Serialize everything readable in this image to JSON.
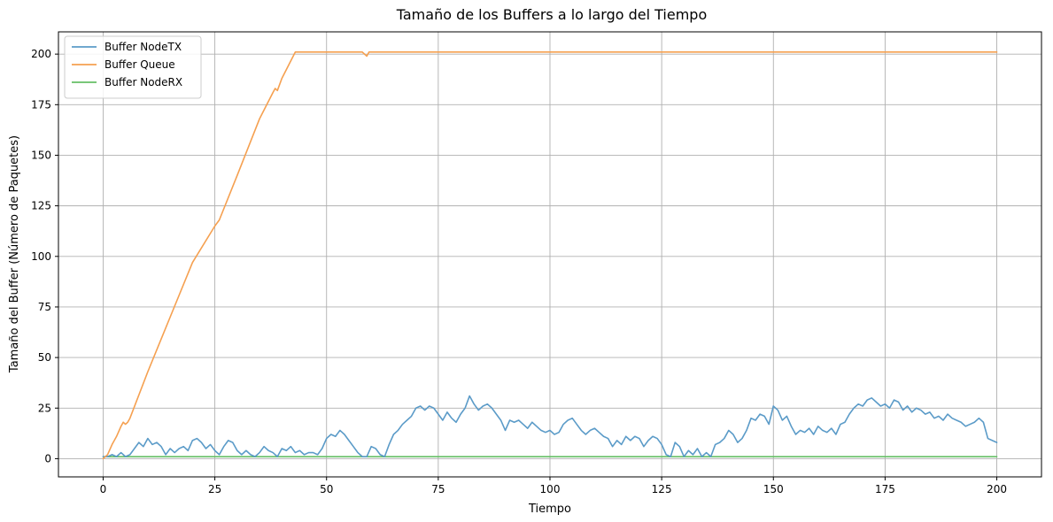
{
  "chart_data": {
    "type": "line",
    "title": "Tamaño de los Buffers a lo largo del Tiempo",
    "xlabel": "Tiempo",
    "ylabel": "Tamaño del Buffer (Número de Paquetes)",
    "xlim": [
      -10,
      210
    ],
    "ylim": [
      -9,
      211
    ],
    "xticks": [
      0,
      25,
      50,
      75,
      100,
      125,
      150,
      175,
      200
    ],
    "yticks": [
      0,
      25,
      50,
      75,
      100,
      125,
      150,
      175,
      200
    ],
    "grid": true,
    "legend_position": "top-left",
    "series": [
      {
        "name": "Buffer NodeTX",
        "color": "#5b9bc8",
        "x": [
          0,
          1,
          2,
          3,
          4,
          5,
          6,
          7,
          8,
          9,
          10,
          11,
          12,
          13,
          14,
          15,
          16,
          17,
          18,
          19,
          20,
          21,
          22,
          23,
          24,
          25,
          26,
          27,
          28,
          29,
          30,
          31,
          32,
          33,
          34,
          35,
          36,
          37,
          38,
          39,
          40,
          41,
          42,
          43,
          44,
          45,
          46,
          47,
          48,
          49,
          50,
          51,
          52,
          53,
          54,
          55,
          56,
          57,
          58,
          59,
          60,
          61,
          62,
          63,
          64,
          65,
          66,
          67,
          68,
          69,
          70,
          71,
          72,
          73,
          74,
          75,
          76,
          77,
          78,
          79,
          80,
          81,
          82,
          83,
          84,
          85,
          86,
          87,
          88,
          89,
          90,
          91,
          92,
          93,
          94,
          95,
          96,
          97,
          98,
          99,
          100,
          101,
          102,
          103,
          104,
          105,
          106,
          107,
          108,
          109,
          110,
          111,
          112,
          113,
          114,
          115,
          116,
          117,
          118,
          119,
          120,
          121,
          122,
          123,
          124,
          125,
          126,
          127,
          128,
          129,
          130,
          131,
          132,
          133,
          134,
          135,
          136,
          137,
          138,
          139,
          140,
          141,
          142,
          143,
          144,
          145,
          146,
          147,
          148,
          149,
          150,
          151,
          152,
          153,
          154,
          155,
          156,
          157,
          158,
          159,
          160,
          161,
          162,
          163,
          164,
          165,
          166,
          167,
          168,
          169,
          170,
          171,
          172,
          173,
          174,
          175,
          176,
          177,
          178,
          179,
          180,
          181,
          182,
          183,
          184,
          185,
          186,
          187,
          188,
          189,
          190,
          191,
          192,
          193,
          194,
          195,
          196,
          197,
          198,
          199,
          200
        ],
        "values": [
          1,
          1,
          2,
          1,
          3,
          1,
          2,
          5,
          8,
          6,
          10,
          7,
          8,
          6,
          2,
          5,
          3,
          5,
          6,
          4,
          9,
          10,
          8,
          5,
          7,
          4,
          2,
          6,
          9,
          8,
          4,
          2,
          4,
          2,
          1,
          3,
          6,
          4,
          3,
          1,
          5,
          4,
          6,
          3,
          4,
          2,
          3,
          3,
          2,
          5,
          10,
          12,
          11,
          14,
          12,
          9,
          6,
          3,
          1,
          1,
          6,
          5,
          2,
          1,
          7,
          12,
          14,
          17,
          19,
          21,
          25,
          26,
          24,
          26,
          25,
          22,
          19,
          23,
          20,
          18,
          22,
          25,
          31,
          27,
          24,
          26,
          27,
          25,
          22,
          19,
          14,
          19,
          18,
          19,
          17,
          15,
          18,
          16,
          14,
          13,
          14,
          12,
          13,
          17,
          19,
          20,
          17,
          14,
          12,
          14,
          15,
          13,
          11,
          10,
          6,
          9,
          7,
          11,
          9,
          11,
          10,
          6,
          9,
          11,
          10,
          7,
          2,
          1,
          8,
          6,
          1,
          4,
          2,
          5,
          1,
          3,
          1,
          7,
          8,
          10,
          14,
          12,
          8,
          10,
          14,
          20,
          19,
          22,
          21,
          17,
          26,
          24,
          19,
          21,
          16,
          12,
          14,
          13,
          15,
          12,
          16,
          14,
          13,
          15,
          12,
          17,
          18,
          22,
          25,
          27,
          26,
          29,
          30,
          28,
          26,
          27,
          25,
          29,
          28,
          24,
          26,
          23,
          25,
          24,
          22,
          23,
          20,
          21,
          19,
          22,
          20,
          19,
          18,
          16,
          17,
          18,
          20,
          18,
          10,
          9,
          8
        ]
      },
      {
        "name": "Buffer Queue",
        "color": "#f5a050",
        "x": [
          0,
          1,
          2,
          3,
          4,
          4.5,
          5,
          5.5,
          6,
          10,
          15,
          20,
          25,
          26,
          30,
          35,
          38,
          38.5,
          39,
          40,
          43,
          50,
          58,
          59,
          59.5,
          60,
          100,
          150,
          200
        ],
        "values": [
          0,
          2,
          7,
          11,
          16,
          18,
          17,
          18,
          20,
          43,
          70,
          97,
          115,
          118,
          140,
          168,
          181,
          183,
          182,
          188,
          201,
          201,
          201,
          199,
          201,
          201,
          201,
          201,
          201
        ]
      },
      {
        "name": "Buffer NodeRX",
        "color": "#66bf66",
        "x": [
          0,
          200
        ],
        "values": [
          1,
          1
        ]
      }
    ]
  }
}
